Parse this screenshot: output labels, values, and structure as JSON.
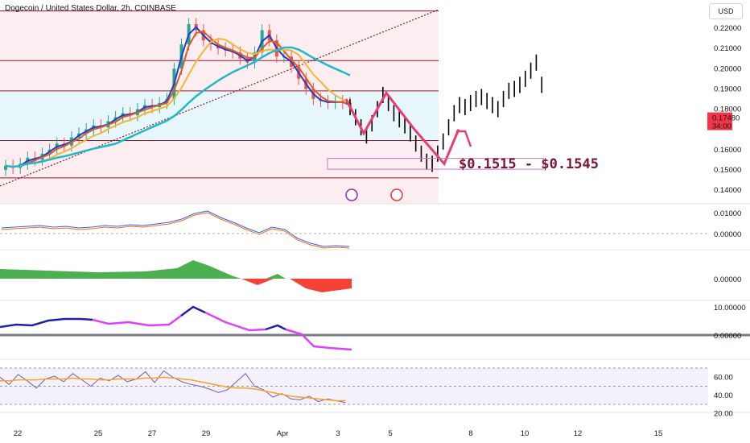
{
  "header": {
    "title": "Dogecoin / United States Dollar, 2h, COINBASE",
    "currency": "USD"
  },
  "price_tag": {
    "value": "0.17480",
    "countdown": "34:00",
    "color": "#f23645"
  },
  "zone_label": "$0.1515 - $0.1545",
  "colors": {
    "ema_fast": "#1e40c8",
    "ema_mid": "#e05a1c",
    "ema_slow": "#f5b731",
    "ema_long": "#22b8c9",
    "pattern": "#e83e72",
    "hist_pos": "#4caf50",
    "hist_neg": "#f44336",
    "rsi_line": "#7e57c2",
    "rsi_ma": "#f5a623",
    "zone_fill": "#fbe9ec",
    "channel_fill": "#e3f6fb"
  },
  "chart_data": [
    {
      "type": "candlestick",
      "pane": "price",
      "price_axis_ticks": [
        "0.22000",
        "0.21000",
        "0.20000",
        "0.19000",
        "0.18000",
        "0.16000",
        "0.15000",
        "0.14000"
      ],
      "date_ticks": [
        "22",
        "25",
        "27",
        "29",
        "Apr",
        "3",
        "5",
        "8",
        "10",
        "12",
        "15"
      ],
      "current_price": 0.1748,
      "support_zone": [
        0.1515,
        0.1545
      ],
      "horizontal_levels": [
        0.2285,
        0.204,
        0.189,
        0.1645,
        0.146
      ],
      "historical_close": [
        0.152,
        0.151,
        0.153,
        0.156,
        0.155,
        0.158,
        0.16,
        0.163,
        0.162,
        0.166,
        0.168,
        0.17,
        0.172,
        0.171,
        0.174,
        0.176,
        0.178,
        0.177,
        0.18,
        0.182,
        0.181,
        0.183,
        0.185,
        0.2,
        0.212,
        0.222,
        0.219,
        0.214,
        0.212,
        0.21,
        0.209,
        0.208,
        0.205,
        0.203,
        0.208,
        0.219,
        0.214,
        0.206,
        0.206,
        0.201,
        0.195,
        0.19,
        0.185,
        0.184,
        0.183,
        0.184,
        0.183,
        0.181
      ],
      "projected_path": [
        0.181,
        0.176,
        0.171,
        0.167,
        0.173,
        0.18,
        0.187,
        0.183,
        0.178,
        0.175,
        0.172,
        0.168,
        0.163,
        0.158,
        0.154,
        0.153,
        0.158,
        0.164,
        0.171,
        0.178,
        0.182,
        0.181,
        0.183,
        0.185,
        0.186,
        0.184,
        0.182,
        0.18,
        0.185,
        0.189,
        0.19,
        0.192,
        0.195,
        0.199,
        0.203,
        0.192
      ],
      "pattern_path": [
        0.185,
        0.168,
        0.188,
        0.17,
        0.153,
        0.17
      ]
    },
    {
      "type": "line",
      "pane": "macd",
      "axis_ticks": [
        "0.01000",
        "0.00000"
      ]
    },
    {
      "type": "area",
      "pane": "histogram",
      "axis_ticks": [
        "0.00000"
      ]
    },
    {
      "type": "line",
      "pane": "momentum",
      "axis_ticks": [
        "10.00000",
        "0.00000"
      ]
    },
    {
      "type": "line",
      "pane": "rsi",
      "axis_ticks": [
        "60.00",
        "40.00",
        "20.00"
      ],
      "bands": [
        70,
        50,
        30
      ]
    }
  ]
}
